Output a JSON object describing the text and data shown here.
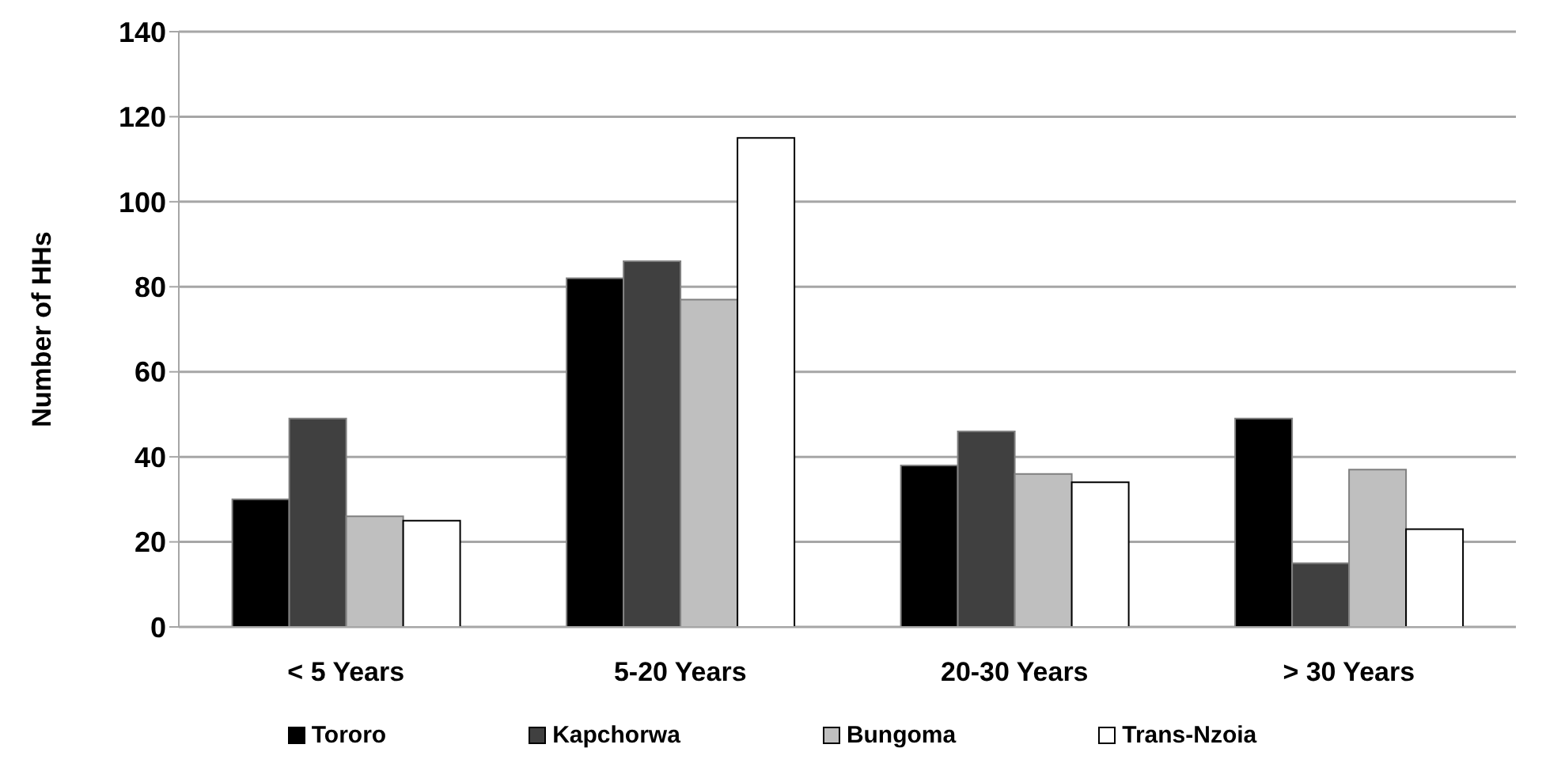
{
  "chart_data": {
    "type": "bar",
    "ylabel": "Number of HHs",
    "categories": [
      "< 5 Years",
      "5-20 Years",
      "20-30 Years",
      "> 30 Years"
    ],
    "series": [
      {
        "name": "Tororo",
        "color": "#000000",
        "values": [
          30,
          82,
          38,
          49
        ]
      },
      {
        "name": "Kapchorwa",
        "color": "#404040",
        "values": [
          49,
          86,
          46,
          15
        ]
      },
      {
        "name": "Bungoma",
        "color": "#bfbfbf",
        "values": [
          26,
          77,
          36,
          37
        ]
      },
      {
        "name": "Trans-Nzoia",
        "color": "#ffffff",
        "values": [
          25,
          115,
          34,
          23
        ]
      }
    ],
    "ylim": [
      0,
      140
    ],
    "yticks": [
      0,
      20,
      40,
      60,
      80,
      100,
      120,
      140
    ],
    "grid": "y",
    "legend": "bottom"
  }
}
